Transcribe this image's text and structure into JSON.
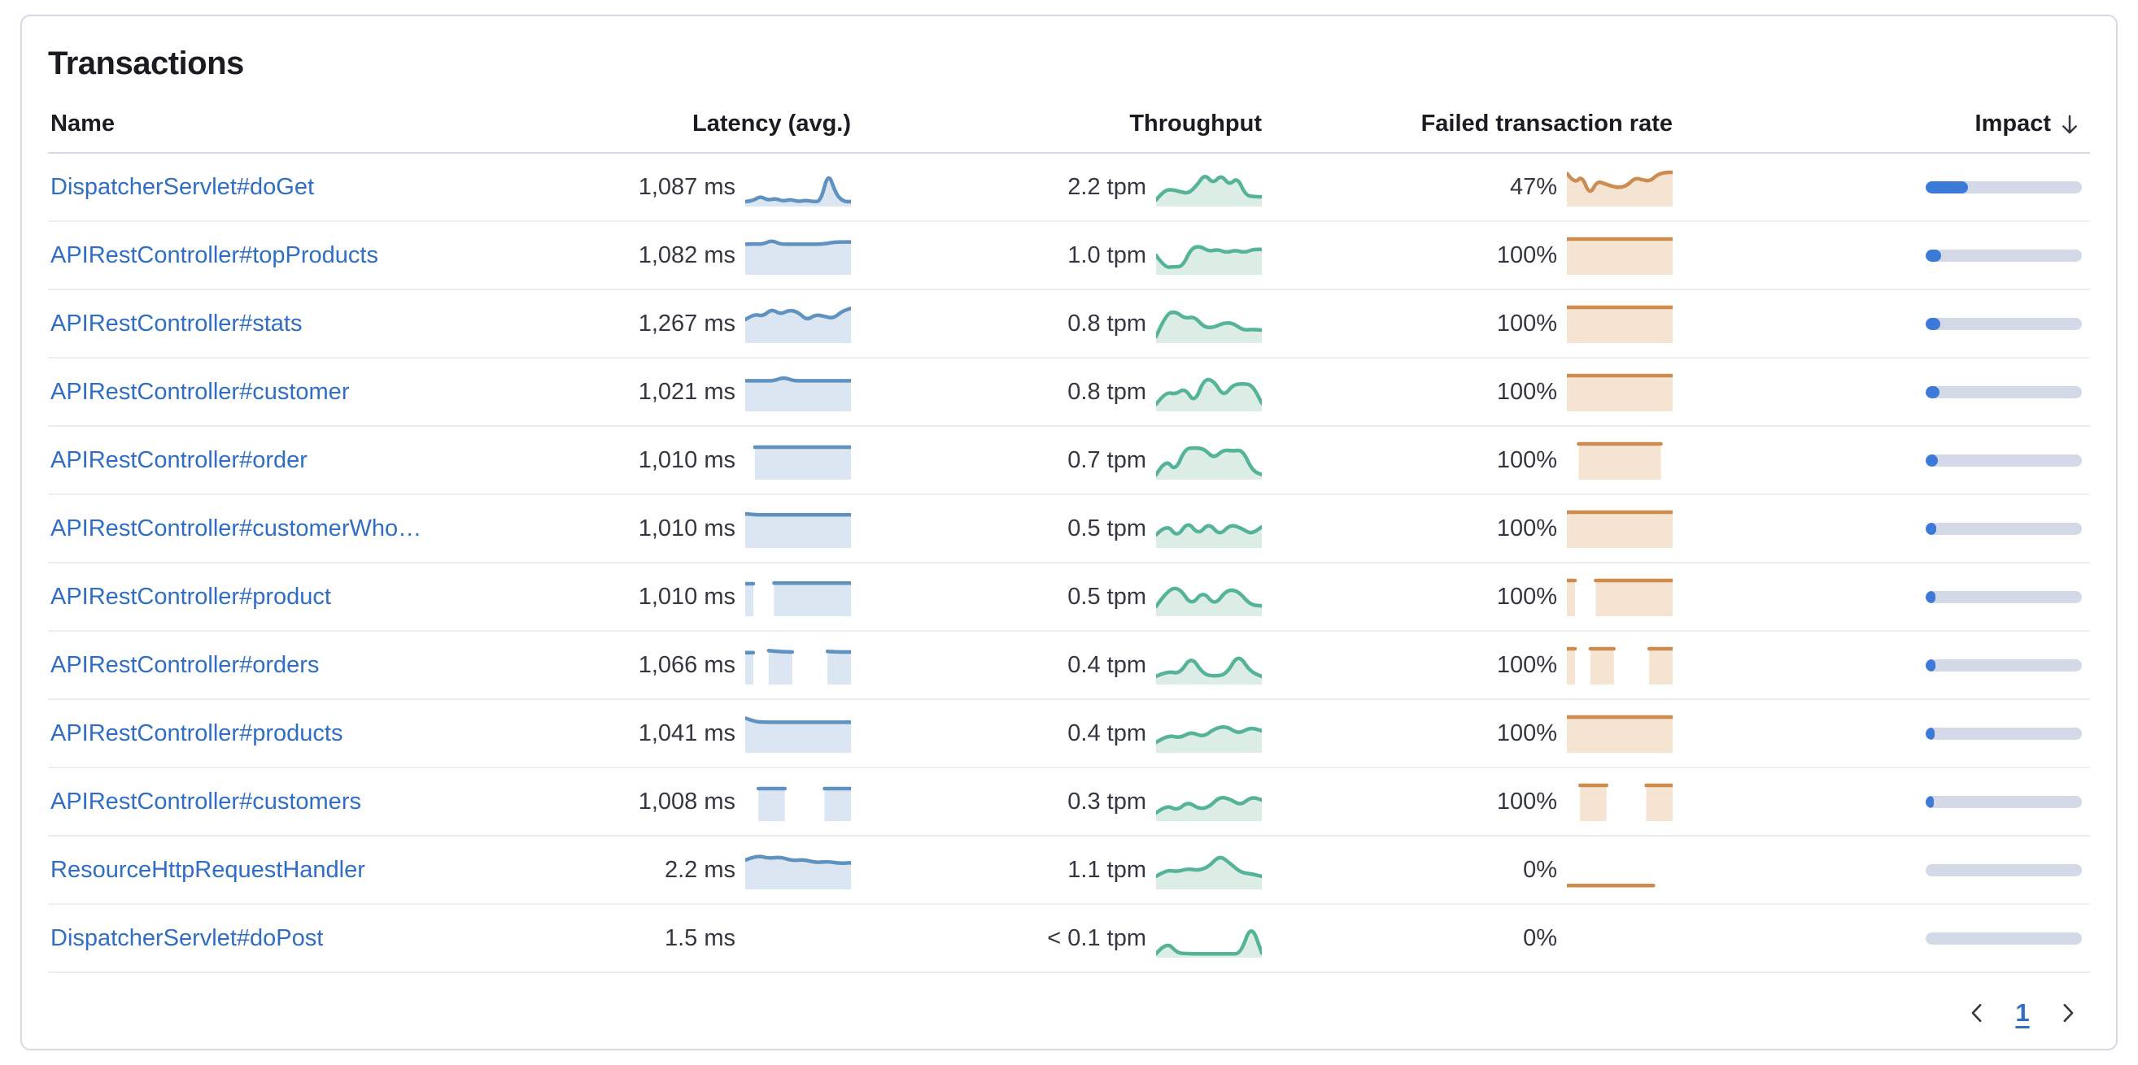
{
  "panel": {
    "title": "Transactions"
  },
  "columns": {
    "name": "Name",
    "latency": "Latency (avg.)",
    "throughput": "Throughput",
    "failed": "Failed transaction rate",
    "impact": "Impact"
  },
  "sort": {
    "column": "impact",
    "direction": "descending"
  },
  "pagination": {
    "current_page": "1"
  },
  "colors": {
    "latency_line": "#6092C0",
    "latency_fill": "#DCE5F2",
    "throughput_line": "#54B399",
    "throughput_fill": "#DBEDE5",
    "failed_line": "#CE8B4E",
    "failed_fill": "#F5E4D2",
    "impact_fill": "#3B7AD9",
    "impact_track": "#D3D9E6",
    "link": "#2F6EC4"
  },
  "rows": [
    {
      "name": "DispatcherServlet#doGet",
      "latency": "1,087 ms",
      "throughput": "2.2 tpm",
      "failed": "47%",
      "impact_pct": 27,
      "latency_spark": [
        0.05,
        0.07,
        0.22,
        0.09,
        0.15,
        0.06,
        0.12,
        0.05,
        0.09,
        0.05,
        0.06,
        0.97,
        0.28,
        0.05,
        0.05
      ],
      "throughput_spark": [
        0.1,
        0.4,
        0.42,
        0.35,
        0.3,
        0.55,
        0.9,
        0.6,
        0.88,
        0.55,
        0.8,
        0.25,
        0.2,
        0.2
      ],
      "failed_spark": [
        0.92,
        0.6,
        0.85,
        0.25,
        0.68,
        0.6,
        0.52,
        0.48,
        0.55,
        0.78,
        0.72,
        0.68,
        0.88,
        0.95,
        0.95
      ],
      "failed_no_fill": false
    },
    {
      "name": "APIRestController#topProducts",
      "latency": "1,082 ms",
      "throughput": "1.0 tpm",
      "failed": "100%",
      "impact_pct": 10,
      "latency_spark": [
        0.84,
        0.85,
        0.84,
        0.96,
        0.84,
        0.84,
        0.84,
        0.84,
        0.84,
        0.85,
        0.9,
        0.91,
        0.91
      ],
      "throughput_spark": [
        0.5,
        0.12,
        0.15,
        0.15,
        0.72,
        0.78,
        0.62,
        0.68,
        0.58,
        0.66,
        0.58,
        0.68,
        0.68
      ],
      "failed_spark": [
        1,
        1,
        1,
        1,
        1,
        1,
        1,
        1,
        1,
        1
      ],
      "failed_no_fill": false
    },
    {
      "name": "APIRestController#stats",
      "latency": "1,267 ms",
      "throughput": "0.8 tpm",
      "failed": "100%",
      "impact_pct": 9.5,
      "latency_spark": [
        0.62,
        0.8,
        0.72,
        0.95,
        0.78,
        0.92,
        0.85,
        0.6,
        0.78,
        0.72,
        0.66,
        0.88,
        0.97
      ],
      "throughput_spark": [
        0.1,
        0.78,
        0.88,
        0.65,
        0.72,
        0.38,
        0.38,
        0.52,
        0.52,
        0.3,
        0.32,
        0.3
      ],
      "failed_spark": [
        1,
        1,
        1,
        1,
        1,
        1,
        1,
        1,
        1,
        1
      ],
      "failed_no_fill": false
    },
    {
      "name": "APIRestController#customer",
      "latency": "1,021 ms",
      "throughput": "0.8 tpm",
      "failed": "100%",
      "impact_pct": 9,
      "latency_spark": [
        0.84,
        0.84,
        0.84,
        0.84,
        0.95,
        0.84,
        0.84,
        0.84,
        0.84,
        0.84,
        0.84,
        0.84
      ],
      "throughput_spark": [
        0.12,
        0.5,
        0.42,
        0.62,
        0.15,
        0.9,
        0.85,
        0.35,
        0.72,
        0.75,
        0.72,
        0.15
      ],
      "failed_spark": [
        1,
        1,
        1,
        1,
        1,
        1,
        1,
        1,
        1,
        1
      ],
      "failed_no_fill": false
    },
    {
      "name": "APIRestController#order",
      "latency": "1,010 ms",
      "throughput": "0.7 tpm",
      "failed": "100%",
      "impact_pct": 8,
      "latency_spark": [
        null,
        0.9,
        0.9,
        0.9,
        0.9,
        0.9,
        0.9,
        0.9,
        0.9,
        0.9,
        0.9,
        0.9
      ],
      "throughput_spark": [
        0.05,
        0.55,
        0.15,
        0.85,
        0.88,
        0.85,
        0.55,
        0.82,
        0.78,
        0.82,
        0.18,
        0.05
      ],
      "failed_spark": [
        null,
        1,
        1,
        1,
        1,
        1,
        1,
        1,
        1,
        null
      ],
      "failed_no_fill": false
    },
    {
      "name": "APIRestController#customerWho…",
      "latency": "1,010 ms",
      "throughput": "0.5 tpm",
      "failed": "100%",
      "impact_pct": 7,
      "latency_spark": [
        0.95,
        0.92,
        0.92,
        0.92,
        0.92,
        0.92,
        0.92,
        0.92,
        0.92,
        0.92,
        0.92,
        0.92
      ],
      "throughput_spark": [
        0.3,
        0.65,
        0.22,
        0.72,
        0.3,
        0.68,
        0.28,
        0.62,
        0.52,
        0.32,
        0.55
      ],
      "failed_spark": [
        1,
        1,
        1,
        1,
        1,
        1,
        1,
        1,
        1,
        1
      ],
      "failed_no_fill": false
    },
    {
      "name": "APIRestController#product",
      "latency": "1,010 ms",
      "throughput": "0.5 tpm",
      "failed": "100%",
      "impact_pct": 6.5,
      "latency_spark": [
        0.9,
        null,
        null,
        0.92,
        0.92,
        0.92,
        0.92,
        0.92,
        0.92,
        0.92,
        0.92,
        0.92
      ],
      "throughput_spark": [
        0.2,
        0.72,
        0.78,
        0.22,
        0.68,
        0.22,
        0.72,
        0.68,
        0.25,
        0.22
      ],
      "failed_spark": [
        1,
        null,
        null,
        1,
        1,
        1,
        1,
        1,
        1,
        1,
        1,
        1
      ],
      "failed_no_fill": false
    },
    {
      "name": "APIRestController#orders",
      "latency": "1,066 ms",
      "throughput": "0.4 tpm",
      "failed": "100%",
      "impact_pct": 6,
      "latency_spark": [
        0.88,
        null,
        0.94,
        0.91,
        0.9,
        null,
        null,
        0.92,
        0.9,
        0.9
      ],
      "throughput_spark": [
        0.15,
        0.32,
        0.22,
        0.78,
        0.22,
        0.15,
        0.22,
        0.85,
        0.3,
        0.15
      ],
      "failed_spark": [
        1,
        null,
        1,
        1,
        1,
        null,
        null,
        1,
        1,
        1
      ],
      "failed_no_fill": false
    },
    {
      "name": "APIRestController#products",
      "latency": "1,041 ms",
      "throughput": "0.4 tpm",
      "failed": "100%",
      "impact_pct": 5.5,
      "latency_spark": [
        0.97,
        0.86,
        0.84,
        0.84,
        0.84,
        0.84,
        0.84,
        0.84,
        0.84,
        0.84,
        0.84,
        0.84
      ],
      "throughput_spark": [
        0.22,
        0.45,
        0.35,
        0.55,
        0.38,
        0.65,
        0.72,
        0.48,
        0.68,
        0.58
      ],
      "failed_spark": [
        1,
        1,
        1,
        1,
        1,
        1,
        1,
        1,
        1,
        1,
        1,
        1
      ],
      "failed_no_fill": false
    },
    {
      "name": "APIRestController#customers",
      "latency": "1,008 ms",
      "throughput": "0.3 tpm",
      "failed": "100%",
      "impact_pct": 5,
      "latency_spark": [
        null,
        0.9,
        0.9,
        0.9,
        null,
        null,
        0.9,
        0.9,
        0.9
      ],
      "throughput_spark": [
        0.15,
        0.4,
        0.22,
        0.5,
        0.28,
        0.32,
        0.65,
        0.58,
        0.38,
        0.65,
        0.55
      ],
      "failed_spark": [
        null,
        1,
        1,
        1,
        null,
        null,
        1,
        1,
        1
      ],
      "failed_no_fill": false
    },
    {
      "name": "ResourceHttpRequestHandler",
      "latency": "2.2 ms",
      "throughput": "1.1 tpm",
      "failed": "0%",
      "impact_pct": 0,
      "latency_spark": [
        0.8,
        0.95,
        0.85,
        0.9,
        0.78,
        0.82,
        0.72,
        0.76,
        0.7,
        0.72
      ],
      "throughput_spark": [
        0.3,
        0.5,
        0.44,
        0.54,
        0.48,
        0.6,
        0.95,
        0.7,
        0.42,
        0.38,
        0.3
      ],
      "failed_spark": [
        0.02,
        0.02,
        0.02,
        0.02,
        0.02,
        0.02,
        0.02,
        0.02,
        0.02,
        0.02,
        null,
        null
      ],
      "failed_no_fill": true
    },
    {
      "name": "DispatcherServlet#doPost",
      "latency": "1.5 ms",
      "throughput": "< 0.1 tpm",
      "failed": "0%",
      "impact_pct": 0,
      "latency_spark": null,
      "throughput_spark": [
        0.02,
        0.4,
        0.04,
        0.02,
        0.02,
        0.02,
        0.02,
        0.02,
        0.02,
        0.95,
        0.04
      ],
      "failed_spark": null,
      "failed_no_fill": false
    }
  ]
}
